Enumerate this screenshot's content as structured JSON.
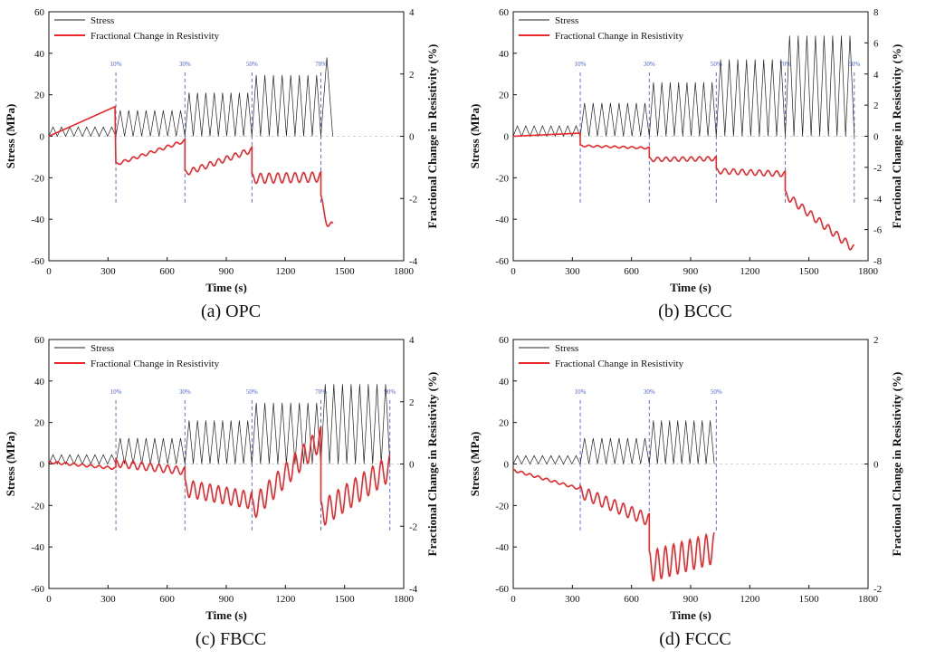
{
  "figure": {
    "captions": [
      "(a) OPC",
      "(b) BCCC",
      "(c) FBCC",
      "(d) FCCC"
    ]
  },
  "colors": {
    "stress": "#222222",
    "resistivity": "#e8282b",
    "marker": "#4c62d6"
  },
  "chart_data": [
    {
      "type": "line",
      "panel": "a",
      "xlabel": "Time (s)",
      "ylabel": "Stress (MPa)",
      "y2label": "Fractional Change in Resistivity (%)",
      "xlim": [
        0,
        1800
      ],
      "xticks": [
        0,
        300,
        600,
        900,
        1200,
        1500,
        1800
      ],
      "ylim": [
        -60,
        60
      ],
      "yticks": [
        -60,
        -40,
        -20,
        0,
        20,
        40,
        60
      ],
      "y2lim": [
        -4,
        4
      ],
      "y2ticks": [
        -4,
        -2,
        0,
        2,
        4
      ],
      "legend": [
        "Stress",
        "Fractional Change in Resistivity"
      ],
      "markers": [
        {
          "x": 340,
          "label": "10%"
        },
        {
          "x": 690,
          "label": "30%"
        },
        {
          "x": 1030,
          "label": "50%"
        },
        {
          "x": 1380,
          "label": "70%"
        }
      ],
      "stress_segments": [
        {
          "x0": 0,
          "x1": 340,
          "amp": 4.5,
          "cycles": 8
        },
        {
          "x0": 340,
          "x1": 690,
          "amp": 12.5,
          "cycles": 8
        },
        {
          "x0": 690,
          "x1": 1030,
          "amp": 21,
          "cycles": 8
        },
        {
          "x0": 1030,
          "x1": 1380,
          "amp": 29.5,
          "cycles": 8
        },
        {
          "x0": 1380,
          "x1": 1440,
          "amp": 38,
          "cycles": 1
        }
      ],
      "resistivity_segments": [
        {
          "x0": 0,
          "x1": 335,
          "y0": 0,
          "y1": 0.95,
          "osc": 0
        },
        {
          "x0": 340,
          "x1": 690,
          "y0": -0.85,
          "y1": -0.1,
          "osc": 0.1
        },
        {
          "x0": 690,
          "x1": 1030,
          "y0": -1.1,
          "y1": -0.35,
          "osc": 0.18
        },
        {
          "x0": 1030,
          "x1": 1380,
          "y0": -1.2,
          "y1": -1.15,
          "osc": 0.32
        },
        {
          "x0": 1380,
          "x1": 1440,
          "y0": -1.9,
          "y1": -2.8,
          "osc": 0.5
        }
      ]
    },
    {
      "type": "line",
      "panel": "b",
      "xlabel": "Time (s)",
      "ylabel": "Stress (MPa)",
      "y2label": "Fractional Change in Resistivity (%)",
      "xlim": [
        0,
        1800
      ],
      "xticks": [
        0,
        300,
        600,
        900,
        1200,
        1500,
        1800
      ],
      "ylim": [
        -60,
        60
      ],
      "yticks": [
        -60,
        -40,
        -20,
        0,
        20,
        40,
        60
      ],
      "y2lim": [
        -8,
        8
      ],
      "y2ticks": [
        -8,
        -6,
        -4,
        -2,
        0,
        2,
        4,
        6,
        8
      ],
      "legend": [
        "Stress",
        "Fractional Change in Resistivity"
      ],
      "markers": [
        {
          "x": 340,
          "label": "10%"
        },
        {
          "x": 690,
          "label": "30%"
        },
        {
          "x": 1030,
          "label": "50%"
        },
        {
          "x": 1380,
          "label": "70%"
        },
        {
          "x": 1730,
          "label": "90%"
        }
      ],
      "stress_segments": [
        {
          "x0": 0,
          "x1": 340,
          "amp": 5,
          "cycles": 8
        },
        {
          "x0": 340,
          "x1": 690,
          "amp": 16,
          "cycles": 8
        },
        {
          "x0": 690,
          "x1": 1030,
          "amp": 26,
          "cycles": 8
        },
        {
          "x0": 1030,
          "x1": 1380,
          "amp": 37,
          "cycles": 8
        },
        {
          "x0": 1380,
          "x1": 1730,
          "amp": 48.5,
          "cycles": 8
        }
      ],
      "resistivity_segments": [
        {
          "x0": 0,
          "x1": 340,
          "y0": 0.0,
          "y1": 0.2,
          "osc": 0
        },
        {
          "x0": 340,
          "x1": 690,
          "y0": -0.55,
          "y1": -0.7,
          "osc": 0.12
        },
        {
          "x0": 690,
          "x1": 1030,
          "y0": -1.35,
          "y1": -1.3,
          "osc": 0.28
        },
        {
          "x0": 1030,
          "x1": 1380,
          "y0": -2.05,
          "y1": -2.25,
          "osc": 0.35
        },
        {
          "x0": 1380,
          "x1": 1730,
          "y0": -3.5,
          "y1": -7.0,
          "osc": 0.5
        }
      ]
    },
    {
      "type": "line",
      "panel": "c",
      "xlabel": "Time (s)",
      "ylabel": "Stress (MPa)",
      "y2label": "Fractional Change in Resistivity (%)",
      "xlim": [
        0,
        1800
      ],
      "xticks": [
        0,
        300,
        600,
        900,
        1200,
        1500,
        1800
      ],
      "ylim": [
        -60,
        60
      ],
      "yticks": [
        -60,
        -40,
        -20,
        0,
        20,
        40,
        60
      ],
      "y2lim": [
        -4,
        4
      ],
      "y2ticks": [
        -4,
        -2,
        0,
        2,
        4
      ],
      "legend": [
        "Stress",
        "Fractional Change in Resistivity"
      ],
      "markers": [
        {
          "x": 340,
          "label": "10%"
        },
        {
          "x": 690,
          "label": "30%"
        },
        {
          "x": 1030,
          "label": "50%"
        },
        {
          "x": 1380,
          "label": "70%"
        },
        {
          "x": 1730,
          "label": "90%"
        }
      ],
      "stress_segments": [
        {
          "x0": 0,
          "x1": 340,
          "amp": 4.5,
          "cycles": 8
        },
        {
          "x0": 340,
          "x1": 690,
          "amp": 12.5,
          "cycles": 8
        },
        {
          "x0": 690,
          "x1": 1030,
          "amp": 21,
          "cycles": 8
        },
        {
          "x0": 1030,
          "x1": 1380,
          "amp": 29.5,
          "cycles": 8
        },
        {
          "x0": 1380,
          "x1": 1730,
          "amp": 38.5,
          "cycles": 8
        }
      ],
      "resistivity_segments": [
        {
          "x0": 0,
          "x1": 340,
          "y0": 0.1,
          "y1": -0.1,
          "osc": 0.08
        },
        {
          "x0": 340,
          "x1": 690,
          "y0": 0.15,
          "y1": -0.1,
          "osc": 0.25
        },
        {
          "x0": 690,
          "x1": 1030,
          "y0": -0.5,
          "y1": -0.9,
          "osc": 0.55
        },
        {
          "x0": 1030,
          "x1": 1380,
          "y0": -1.1,
          "y1": 1.2,
          "osc": 0.75
        },
        {
          "x0": 1380,
          "x1": 1730,
          "y0": -1.2,
          "y1": 0.3,
          "osc": 0.85
        }
      ]
    },
    {
      "type": "line",
      "panel": "d",
      "xlabel": "Time (s)",
      "ylabel": "Stress (MPa)",
      "y2label": "Fractional Change in Resistivity (%)",
      "xlim": [
        0,
        1800
      ],
      "xticks": [
        0,
        300,
        600,
        900,
        1200,
        1500,
        1800
      ],
      "ylim": [
        -60,
        60
      ],
      "yticks": [
        -60,
        -40,
        -20,
        0,
        20,
        40,
        60
      ],
      "y2lim": [
        -2,
        2
      ],
      "y2ticks": [
        -2,
        0,
        2
      ],
      "legend": [
        "Stress",
        "Fractional Change in Resistivity"
      ],
      "markers": [
        {
          "x": 340,
          "label": "10%"
        },
        {
          "x": 690,
          "label": "30%"
        },
        {
          "x": 1030,
          "label": "50%"
        }
      ],
      "stress_segments": [
        {
          "x0": 0,
          "x1": 340,
          "amp": 4,
          "cycles": 8
        },
        {
          "x0": 340,
          "x1": 690,
          "amp": 12.5,
          "cycles": 8
        },
        {
          "x0": 690,
          "x1": 1020,
          "amp": 21,
          "cycles": 8
        }
      ],
      "resistivity_segments": [
        {
          "x0": 0,
          "x1": 340,
          "y0": -0.08,
          "y1": -0.38,
          "osc": 0.04
        },
        {
          "x0": 340,
          "x1": 690,
          "y0": -0.35,
          "y1": -0.8,
          "osc": 0.2
        },
        {
          "x0": 690,
          "x1": 1020,
          "y0": -1.4,
          "y1": -1.1,
          "osc": 0.5
        }
      ]
    }
  ]
}
